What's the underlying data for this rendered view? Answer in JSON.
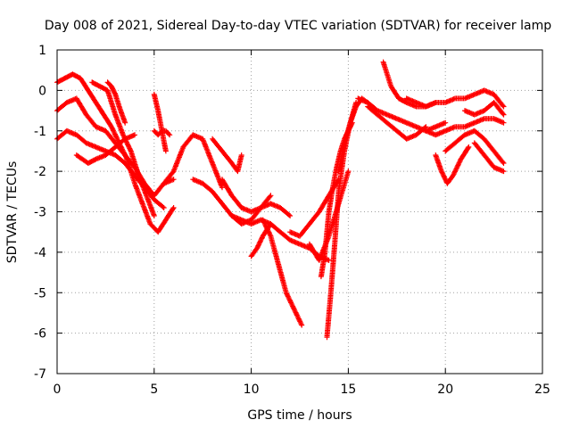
{
  "chart_data": {
    "type": "scatter",
    "title": "Day 008 of 2021, Sidereal Day-to-day VTEC variation (SDTVAR) for receiver lamp",
    "xlabel": "GPS time / hours",
    "ylabel": "SDTVAR / TECUs",
    "xlim": [
      0,
      25
    ],
    "ylim": [
      -7,
      1
    ],
    "xticks": [
      0,
      5,
      10,
      15,
      20,
      25
    ],
    "yticks": [
      -7,
      -6,
      -5,
      -4,
      -3,
      -2,
      -1,
      0,
      1
    ],
    "grid": true,
    "marker": "plus",
    "colors": {
      "series": "#ff0000",
      "grid": "#a0a0a0",
      "axis": "#000000"
    },
    "series": [
      {
        "x": [
          0,
          0.4,
          0.8,
          1.2,
          1.6,
          2.0,
          2.4,
          2.8,
          3.2,
          3.6,
          4.0,
          4.4,
          4.8,
          5.2,
          5.6,
          6.0
        ],
        "y": [
          0.2,
          0.3,
          0.4,
          0.3,
          0.0,
          -0.3,
          -0.6,
          -0.9,
          -1.3,
          -1.7,
          -2.3,
          -2.8,
          -3.3,
          -3.5,
          -3.2,
          -2.9
        ]
      },
      {
        "x": [
          0,
          0.5,
          1.0,
          1.5,
          2.0,
          2.5,
          3.0,
          3.5,
          4.0,
          4.5,
          5.0,
          5.5,
          6.0
        ],
        "y": [
          -0.5,
          -0.3,
          -0.2,
          -0.6,
          -0.9,
          -1.0,
          -1.3,
          -1.6,
          -1.9,
          -2.3,
          -2.6,
          -2.3,
          -2.2
        ]
      },
      {
        "x": [
          0,
          0.5,
          1.0,
          1.5,
          2.0,
          2.5,
          3.0,
          3.5,
          4.0,
          4.5,
          5.0,
          5.5
        ],
        "y": [
          -1.2,
          -1.0,
          -1.1,
          -1.3,
          -1.4,
          -1.5,
          -1.6,
          -1.8,
          -2.1,
          -2.4,
          -2.7,
          -2.9
        ]
      },
      {
        "x": [
          1.0,
          1.3,
          1.6,
          2.0,
          2.5,
          3.0,
          3.5,
          4.0
        ],
        "y": [
          -1.6,
          -1.7,
          -1.8,
          -1.7,
          -1.6,
          -1.4,
          -1.2,
          -1.1
        ]
      },
      {
        "x": [
          1.8,
          2.2,
          2.6,
          3.0,
          3.4,
          3.8,
          4.2,
          4.6,
          5.0
        ],
        "y": [
          0.2,
          0.1,
          0.0,
          -0.6,
          -1.1,
          -1.5,
          -2.1,
          -2.6,
          -3.1
        ]
      },
      {
        "x": [
          2.6,
          2.8,
          3.0,
          3.2,
          3.5
        ],
        "y": [
          0.2,
          0.1,
          -0.1,
          -0.4,
          -0.8
        ]
      },
      {
        "x": [
          5.0,
          5.2,
          5.4,
          5.6,
          5.8
        ],
        "y": [
          -1.0,
          -1.1,
          -1.0,
          -1.0,
          -1.1
        ]
      },
      {
        "x": [
          5.0,
          5.2,
          5.4,
          5.6
        ],
        "y": [
          -0.1,
          -0.5,
          -1.0,
          -1.5
        ]
      },
      {
        "x": [
          5.5,
          6.0,
          6.5,
          7.0,
          7.5,
          8.0,
          8.5
        ],
        "y": [
          -2.3,
          -2.0,
          -1.4,
          -1.1,
          -1.2,
          -1.8,
          -2.4
        ]
      },
      {
        "x": [
          7.0,
          7.5,
          8.0,
          8.5,
          9.0,
          9.5,
          10.0,
          10.5,
          11.0
        ],
        "y": [
          -2.2,
          -2.3,
          -2.5,
          -2.8,
          -3.1,
          -3.3,
          -3.2,
          -2.9,
          -2.6
        ]
      },
      {
        "x": [
          8.0,
          8.5,
          9.0,
          9.3,
          9.5
        ],
        "y": [
          -1.2,
          -1.5,
          -1.8,
          -2.0,
          -1.6
        ]
      },
      {
        "x": [
          8.5,
          9.0,
          9.5,
          10.0,
          10.5,
          11.0,
          11.5,
          12.0
        ],
        "y": [
          -2.2,
          -2.6,
          -2.9,
          -3.0,
          -2.9,
          -2.8,
          -2.9,
          -3.1
        ]
      },
      {
        "x": [
          9.0,
          9.5,
          10.0,
          10.5,
          11.0,
          11.5,
          12.0,
          12.5,
          13.0,
          13.5,
          14.0
        ],
        "y": [
          -3.1,
          -3.2,
          -3.3,
          -3.2,
          -3.3,
          -3.5,
          -3.7,
          -3.8,
          -3.9,
          -4.1,
          -4.2
        ]
      },
      {
        "x": [
          10.0,
          10.3,
          10.6,
          11.0
        ],
        "y": [
          -4.1,
          -3.9,
          -3.6,
          -3.3
        ]
      },
      {
        "x": [
          10.6,
          11.0,
          11.4,
          11.8,
          12.2,
          12.6
        ],
        "y": [
          -3.2,
          -3.6,
          -4.3,
          -5.0,
          -5.4,
          -5.8
        ]
      },
      {
        "x": [
          12.0,
          12.5,
          13.0,
          13.5,
          14.0,
          14.5
        ],
        "y": [
          -3.5,
          -3.6,
          -3.3,
          -3.0,
          -2.6,
          -2.2
        ]
      },
      {
        "x": [
          13.0,
          13.5,
          14.0,
          14.5,
          15.0
        ],
        "y": [
          -3.8,
          -4.2,
          -3.6,
          -2.8,
          -2.0
        ]
      },
      {
        "x": [
          13.6,
          13.8,
          14.0,
          14.2,
          14.4,
          14.6,
          14.8,
          15.0,
          15.2
        ],
        "y": [
          -4.6,
          -4.0,
          -3.0,
          -2.4,
          -1.9,
          -1.5,
          -1.2,
          -1.0,
          -0.8
        ]
      },
      {
        "x": [
          13.9,
          14.1,
          14.3,
          14.5,
          14.8,
          15.1,
          15.4
        ],
        "y": [
          -6.1,
          -5.0,
          -3.8,
          -2.5,
          -1.5,
          -0.8,
          -0.3
        ]
      },
      {
        "x": [
          14.5,
          14.8,
          15.1,
          15.4,
          15.7,
          16.0
        ],
        "y": [
          -2.0,
          -1.3,
          -0.8,
          -0.4,
          -0.2,
          -0.3
        ]
      },
      {
        "x": [
          15.5,
          16.0,
          16.5,
          17.0,
          17.5,
          18.0,
          18.5,
          19.0,
          19.5,
          20.0
        ],
        "y": [
          -0.2,
          -0.3,
          -0.5,
          -0.6,
          -0.7,
          -0.8,
          -0.9,
          -1.0,
          -0.9,
          -0.8
        ]
      },
      {
        "x": [
          16.0,
          16.5,
          17.0,
          17.5,
          18.0,
          18.5,
          19.0
        ],
        "y": [
          -0.4,
          -0.6,
          -0.8,
          -1.0,
          -1.2,
          -1.1,
          -0.9
        ]
      },
      {
        "x": [
          16.8,
          17.0,
          17.2,
          17.6,
          18.0,
          18.5,
          19.0,
          19.5
        ],
        "y": [
          0.7,
          0.4,
          0.1,
          -0.2,
          -0.3,
          -0.4,
          -0.4,
          -0.3
        ]
      },
      {
        "x": [
          18.0,
          18.5,
          19.0,
          19.5,
          20.0,
          20.5,
          21.0,
          21.5,
          22.0,
          22.5,
          23.0
        ],
        "y": [
          -0.2,
          -0.3,
          -0.4,
          -0.3,
          -0.3,
          -0.2,
          -0.2,
          -0.1,
          0.0,
          -0.1,
          -0.4
        ]
      },
      {
        "x": [
          19.0,
          19.5,
          20.0,
          20.5,
          21.0,
          21.5,
          22.0,
          22.5,
          23.0
        ],
        "y": [
          -1.0,
          -1.1,
          -1.0,
          -0.9,
          -0.9,
          -0.8,
          -0.7,
          -0.7,
          -0.8
        ]
      },
      {
        "x": [
          19.5,
          19.8,
          20.1,
          20.4,
          20.8,
          21.2
        ],
        "y": [
          -1.6,
          -2.0,
          -2.3,
          -2.1,
          -1.7,
          -1.4
        ]
      },
      {
        "x": [
          20.0,
          20.5,
          21.0,
          21.5,
          22.0,
          22.5,
          23.0
        ],
        "y": [
          -1.5,
          -1.3,
          -1.1,
          -1.0,
          -1.2,
          -1.5,
          -1.8
        ]
      },
      {
        "x": [
          21.0,
          21.5,
          22.0,
          22.5,
          23.0
        ],
        "y": [
          -0.5,
          -0.6,
          -0.5,
          -0.3,
          -0.6
        ]
      },
      {
        "x": [
          21.5,
          22.0,
          22.5,
          23.0
        ],
        "y": [
          -1.3,
          -1.6,
          -1.9,
          -2.0
        ]
      }
    ]
  }
}
